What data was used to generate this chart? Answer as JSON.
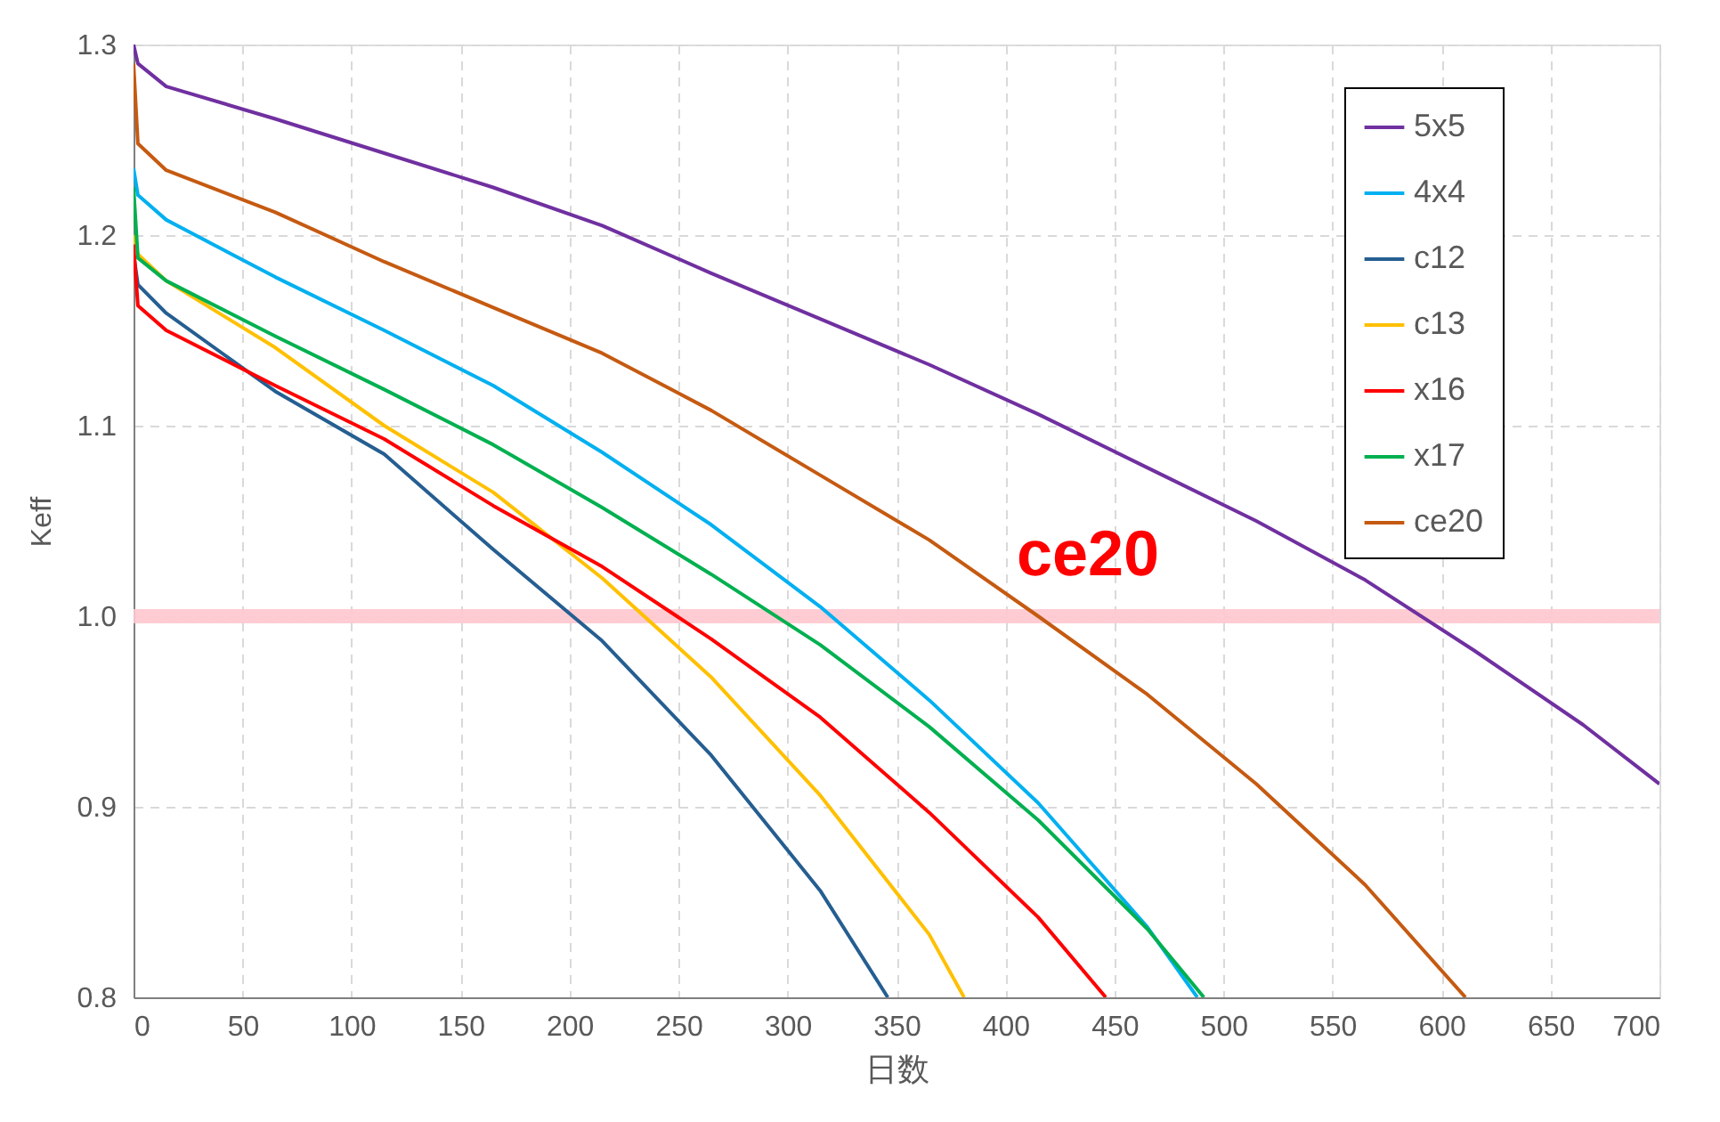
{
  "chart_data": {
    "type": "line",
    "xlabel": "日数",
    "ylabel": "Keff",
    "xlim": [
      0,
      700
    ],
    "xticks": [
      0,
      50,
      100,
      150,
      200,
      250,
      300,
      350,
      400,
      450,
      500,
      550,
      600,
      650,
      700
    ],
    "ylim": [
      0.8,
      1.3
    ],
    "yticks": [
      {
        "value": 0.8,
        "label": "0.8"
      },
      {
        "value": 0.9,
        "label": "0.9"
      },
      {
        "value": 1.0,
        "label": "1.0"
      },
      {
        "value": 1.1,
        "label": "1.1"
      },
      {
        "value": 1.2,
        "label": "1.2"
      },
      {
        "value": 1.3,
        "label": "1.3"
      }
    ],
    "grid": true,
    "legend": "top right",
    "marker": "none",
    "line_style": "solid",
    "ref_lines": [
      {
        "axis": "y",
        "value": 1.0,
        "color": "#ffc7ce"
      }
    ],
    "annotations": [
      "ce20"
    ],
    "series": [
      {
        "name": "5x5",
        "color": "#7030a0",
        "x": [
          0,
          2,
          15,
          65,
          115,
          165,
          215,
          265,
          315,
          365,
          415,
          465,
          515,
          565,
          615,
          665,
          700
        ],
        "values": [
          1.3,
          1.29,
          1.278,
          1.261,
          1.243,
          1.225,
          1.205,
          1.18,
          1.156,
          1.132,
          1.106,
          1.078,
          1.05,
          1.019,
          0.982,
          0.943,
          0.912
        ]
      },
      {
        "name": "4x4",
        "color": "#00b0f0",
        "x": [
          0,
          2,
          15,
          65,
          115,
          165,
          215,
          265,
          315,
          365,
          415,
          465,
          488
        ],
        "values": [
          1.235,
          1.221,
          1.208,
          1.178,
          1.15,
          1.121,
          1.086,
          1.048,
          1.005,
          0.956,
          0.902,
          0.837,
          0.8
        ]
      },
      {
        "name": "c12",
        "color": "#255e91",
        "x": [
          0,
          2,
          15,
          65,
          115,
          165,
          215,
          265,
          315,
          346
        ],
        "values": [
          1.19,
          1.174,
          1.159,
          1.118,
          1.085,
          1.035,
          0.987,
          0.927,
          0.856,
          0.8
        ]
      },
      {
        "name": "c13",
        "color": "#ffc000",
        "x": [
          0,
          2,
          15,
          65,
          115,
          165,
          215,
          265,
          315,
          365,
          381
        ],
        "values": [
          1.2,
          1.19,
          1.176,
          1.141,
          1.1,
          1.065,
          1.02,
          0.968,
          0.906,
          0.833,
          0.8
        ]
      },
      {
        "name": "x16",
        "color": "#ff0000",
        "x": [
          0,
          2,
          15,
          65,
          115,
          165,
          215,
          265,
          315,
          365,
          415,
          446
        ],
        "values": [
          1.195,
          1.163,
          1.15,
          1.121,
          1.093,
          1.058,
          1.026,
          0.988,
          0.947,
          0.897,
          0.842,
          0.8
        ]
      },
      {
        "name": "x17",
        "color": "#00b050",
        "x": [
          0,
          2,
          15,
          65,
          115,
          165,
          215,
          265,
          315,
          365,
          415,
          465,
          491
        ],
        "values": [
          1.225,
          1.188,
          1.176,
          1.147,
          1.119,
          1.09,
          1.057,
          1.022,
          0.985,
          0.942,
          0.893,
          0.836,
          0.8
        ]
      },
      {
        "name": "ce20",
        "color": "#c55a11",
        "x": [
          0,
          2,
          15,
          65,
          115,
          165,
          215,
          265,
          315,
          365,
          415,
          465,
          515,
          565,
          611
        ],
        "values": [
          1.29,
          1.248,
          1.234,
          1.212,
          1.186,
          1.162,
          1.138,
          1.108,
          1.074,
          1.04,
          1.0,
          0.959,
          0.912,
          0.859,
          0.8
        ]
      }
    ]
  }
}
